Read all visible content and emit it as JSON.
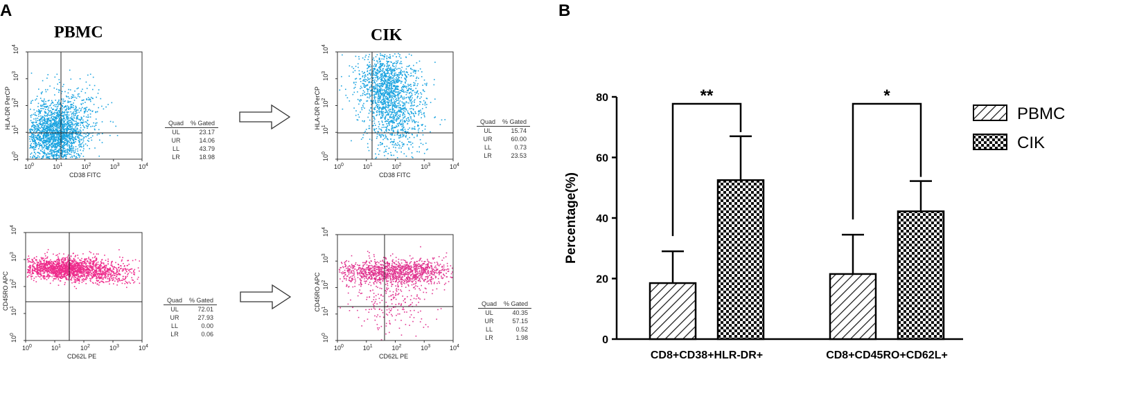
{
  "panel_a": {
    "letter": "A",
    "titles": {
      "pbmc": "PBMC",
      "cik": "CIK"
    },
    "plots": [
      {
        "id": "pbmc-top",
        "y_label": "HLA-DR PerCP",
        "x_label": "CD38 FITC",
        "color": "#1aa3e0",
        "table_header": {
          "quad": "Quad",
          "gated": "% Gated"
        },
        "quadrants": [
          {
            "quad": "UL",
            "value": "23.17"
          },
          {
            "quad": "UR",
            "value": "14.06"
          },
          {
            "quad": "LL",
            "value": "43.79"
          },
          {
            "quad": "LR",
            "value": "18.98"
          }
        ]
      },
      {
        "id": "cik-top",
        "y_label": "HLA-DR PerCP",
        "x_label": "CD38 FITC",
        "color": "#1aa3e0",
        "table_header": {
          "quad": "Quad",
          "gated": "% Gated"
        },
        "quadrants": [
          {
            "quad": "UL",
            "value": "15.74"
          },
          {
            "quad": "UR",
            "value": "60.00"
          },
          {
            "quad": "LL",
            "value": "0.73"
          },
          {
            "quad": "LR",
            "value": "23.53"
          }
        ]
      },
      {
        "id": "pbmc-bottom",
        "y_label": "CD45RO APC",
        "x_label": "CD62L PE",
        "color": "#ee2c8c",
        "table_header": {
          "quad": "Quad",
          "gated": "% Gated"
        },
        "quadrants": [
          {
            "quad": "UL",
            "value": "72.01"
          },
          {
            "quad": "UR",
            "value": "27.93"
          },
          {
            "quad": "LL",
            "value": "0.00"
          },
          {
            "quad": "LR",
            "value": "0.06"
          }
        ]
      },
      {
        "id": "cik-bottom",
        "y_label": "CD45RO APC",
        "x_label": "CD62L PE",
        "color": "#e0338f",
        "table_header": {
          "quad": "Quad",
          "gated": "% Gated"
        },
        "quadrants": [
          {
            "quad": "UL",
            "value": "40.35"
          },
          {
            "quad": "UR",
            "value": "57.15"
          },
          {
            "quad": "LL",
            "value": "0.52"
          },
          {
            "quad": "LR",
            "value": "1.98"
          }
        ]
      }
    ],
    "tick_labels": [
      "10",
      "10",
      "10",
      "10",
      "10"
    ],
    "tick_exponents": [
      "0",
      "1",
      "2",
      "3",
      "4"
    ]
  },
  "chart_data": {
    "type": "bar",
    "panel_letter": "B",
    "title": "",
    "ylabel": "Percentage(%)",
    "xlabel": "",
    "ylim": [
      0,
      80
    ],
    "yticks": [
      "0",
      "20",
      "40",
      "60",
      "80"
    ],
    "categories": [
      "CD8+CD38+HLR-DR+",
      "CD8+CD45RO+CD62L+"
    ],
    "series": [
      {
        "name": "PBMC",
        "pattern": "diagonal-hatch",
        "values": [
          18.5,
          21.5
        ],
        "errors": [
          10.5,
          13
        ]
      },
      {
        "name": "CIK",
        "pattern": "checkerboard",
        "values": [
          52.5,
          42.2
        ],
        "errors": [
          14.5,
          10
        ]
      }
    ],
    "significance": [
      "**",
      "*"
    ],
    "legend_position": "top-right"
  }
}
